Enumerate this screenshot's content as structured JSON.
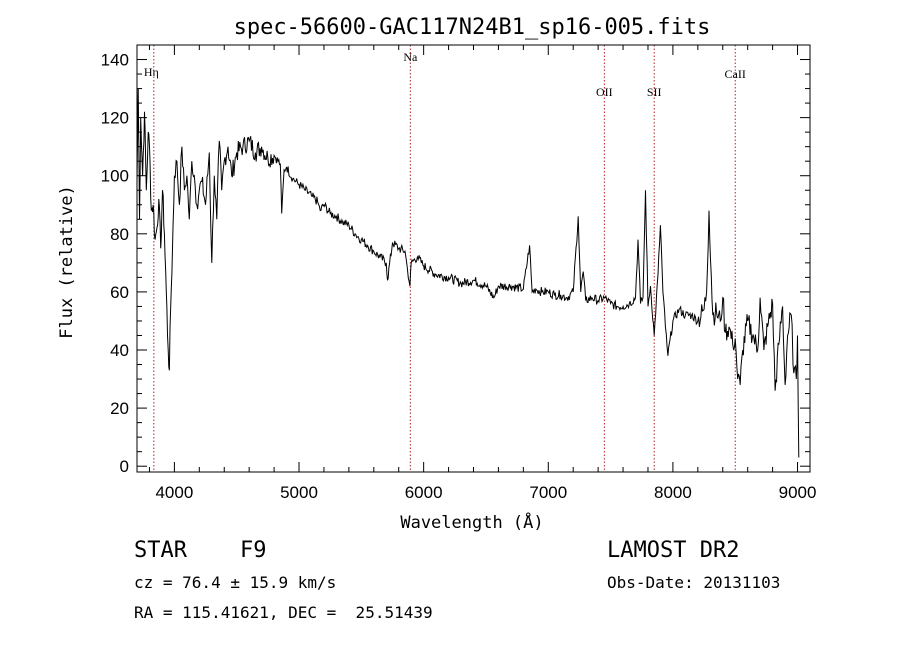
{
  "chart_data": {
    "type": "line",
    "title": "spec-56600-GAC117N24B1_sp16-005.fits",
    "xlabel": "Wavelength (Å)",
    "ylabel": "Flux (relative)",
    "xlim": [
      3700,
      9100
    ],
    "ylim": [
      -2,
      145
    ],
    "xticks": [
      4000,
      5000,
      6000,
      7000,
      8000,
      9000
    ],
    "yticks": [
      0,
      20,
      40,
      60,
      80,
      100,
      120,
      140
    ],
    "grid": false,
    "line_color": "#000000",
    "marker_color": "#b22222",
    "lines": [
      {
        "label": "Hη",
        "x": 3835
      },
      {
        "label": "Na",
        "x": 5893
      },
      {
        "label": "OII",
        "x": 7450
      },
      {
        "label": "SII",
        "x": 7850
      },
      {
        "label": "CaII",
        "x": 8500
      }
    ],
    "series": [
      {
        "x": [
          3700,
          3710,
          3720,
          3730,
          3745,
          3760,
          3775,
          3790,
          3800,
          3815,
          3830,
          3845,
          3860,
          3875,
          3890,
          3905,
          3920,
          3935,
          3950,
          3960,
          3970,
          3985,
          4000,
          4020,
          4040,
          4060,
          4080,
          4100,
          4120,
          4140,
          4160,
          4180,
          4200,
          4220,
          4250,
          4280,
          4300,
          4320,
          4340,
          4360,
          4380,
          4400,
          4430,
          4460,
          4500,
          4550,
          4600,
          4650,
          4700,
          4750,
          4800,
          4850,
          4861,
          4880,
          4900,
          4950,
          5000,
          5050,
          5100,
          5150,
          5170,
          5200,
          5250,
          5300,
          5350,
          5400,
          5450,
          5500,
          5550,
          5600,
          5650,
          5700,
          5710,
          5750,
          5800,
          5850,
          5870,
          5890,
          5900,
          5950,
          6000,
          6100,
          6200,
          6300,
          6400,
          6500,
          6563,
          6600,
          6700,
          6800,
          6850,
          6870,
          6900,
          6950,
          7000,
          7050,
          7100,
          7150,
          7200,
          7240,
          7260,
          7280,
          7300,
          7350,
          7400,
          7450,
          7500,
          7550,
          7600,
          7650,
          7700,
          7720,
          7740,
          7760,
          7780,
          7800,
          7820,
          7850,
          7880,
          7900,
          7920,
          7940,
          7960,
          8000,
          8050,
          8100,
          8150,
          8200,
          8250,
          8270,
          8290,
          8320,
          8350,
          8380,
          8400,
          8420,
          8450,
          8480,
          8500,
          8520,
          8540,
          8560,
          8600,
          8650,
          8680,
          8700,
          8730,
          8760,
          8800,
          8820,
          8850,
          8880,
          8900,
          8920,
          8950,
          8970,
          8990,
          9000,
          9010
        ],
        "y": [
          98,
          130,
          85,
          120,
          100,
          122,
          95,
          115,
          110,
          88,
          90,
          78,
          82,
          92,
          75,
          95,
          80,
          60,
          40,
          33,
          55,
          75,
          100,
          105,
          90,
          110,
          95,
          100,
          85,
          105,
          100,
          90,
          95,
          98,
          90,
          108,
          70,
          100,
          85,
          112,
          95,
          105,
          110,
          100,
          108,
          110,
          112,
          108,
          110,
          106,
          107,
          104,
          87,
          102,
          103,
          99,
          97,
          95,
          93,
          91,
          88,
          90,
          87,
          86,
          84,
          83,
          80,
          78,
          76,
          74,
          72,
          70,
          64,
          77,
          75,
          74,
          68,
          62,
          70,
          72,
          69,
          66,
          65,
          63,
          64,
          62,
          58,
          62,
          62,
          61,
          76,
          60,
          61,
          60,
          60,
          59,
          59,
          58,
          60,
          86,
          60,
          67,
          57,
          58,
          57,
          58,
          56,
          55,
          55,
          56,
          58,
          78,
          56,
          58,
          95,
          55,
          62,
          45,
          66,
          83,
          60,
          48,
          38,
          50,
          54,
          52,
          52,
          50,
          54,
          60,
          88,
          52,
          53,
          50,
          58,
          46,
          48,
          42,
          44,
          30,
          28,
          40,
          50,
          44,
          40,
          58,
          40,
          48,
          56,
          26,
          42,
          55,
          28,
          45,
          52,
          32,
          30,
          45,
          3
        ]
      }
    ]
  },
  "info": {
    "left_line1": "STAR    F9",
    "left_line2": "cz = 76.4 ± 15.9 km/s",
    "left_line3": "RA = 115.41621, DEC =  25.51439",
    "right_line1": "LAMOST DR2",
    "right_line2": "Obs-Date: 20131103"
  }
}
